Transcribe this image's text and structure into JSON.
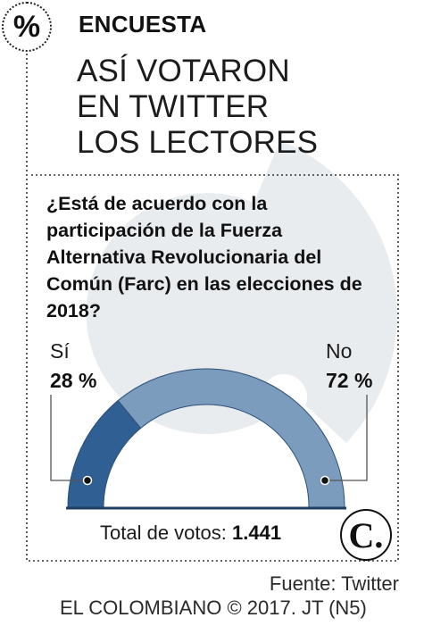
{
  "header": {
    "badge_symbol": "%",
    "kicker": "ENCUESTA",
    "headline_lines": [
      "ASÍ VOTARON",
      "EN TWITTER",
      "LOS LECTORES"
    ]
  },
  "question": "¿Está de acuerdo con la participación de la Fuerza Alternativa Revolucionaria del Común (Farc) en las elecciones de 2018?",
  "chart_data": {
    "type": "pie",
    "variant": "semicircle",
    "categories": [
      "Sí",
      "No"
    ],
    "values": [
      28,
      72
    ],
    "value_labels": [
      "28 %",
      "72 %"
    ],
    "unit": "%",
    "colors": [
      "#2f5f93",
      "#7c9cbd"
    ]
  },
  "total": {
    "label": "Total de votos:",
    "value": "1.441"
  },
  "footer": {
    "source": "Fuente: Twitter",
    "credit": "EL COLOMBIANO © 2017. JT (N5)",
    "logo_glyph": "C."
  },
  "colors": {
    "watermark": "#e9ecef",
    "frame_dots": "#333333",
    "leader_line": "#555555"
  }
}
